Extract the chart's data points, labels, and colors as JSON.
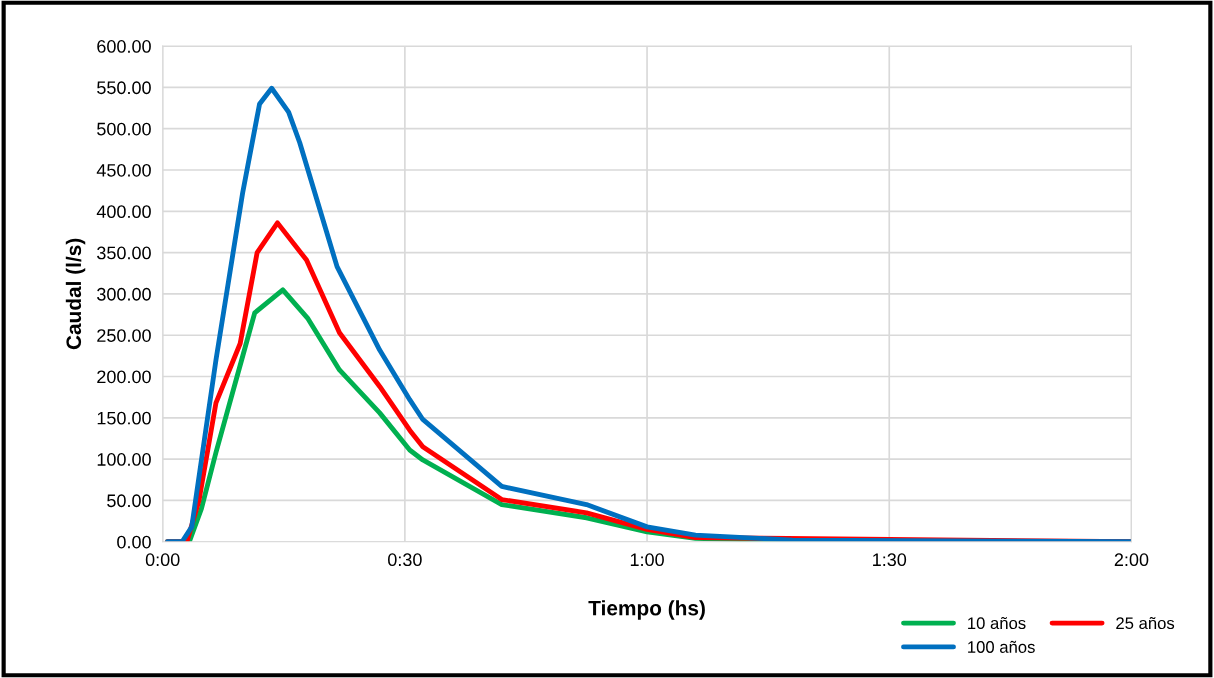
{
  "chart_data": {
    "type": "line",
    "xlabel": "Tiempo (hs)",
    "ylabel": "Caudal (l/s)",
    "xlim": [
      0,
      2
    ],
    "xticks": [
      {
        "value": 0,
        "label": "0:00"
      },
      {
        "value": 0.5,
        "label": "0:30"
      },
      {
        "value": 1,
        "label": "1:00"
      },
      {
        "value": 1.5,
        "label": "1:30"
      },
      {
        "value": 2,
        "label": "2:00"
      }
    ],
    "ylim": [
      0,
      600
    ],
    "yticks": [
      {
        "value": 0,
        "label": "0.00"
      },
      {
        "value": 50,
        "label": "50.00"
      },
      {
        "value": 100,
        "label": "100.00"
      },
      {
        "value": 150,
        "label": "150.00"
      },
      {
        "value": 200,
        "label": "200.00"
      },
      {
        "value": 250,
        "label": "250.00"
      },
      {
        "value": 300,
        "label": "300.00"
      },
      {
        "value": 350,
        "label": "350.00"
      },
      {
        "value": 400,
        "label": "400.00"
      },
      {
        "value": 450,
        "label": "450.00"
      },
      {
        "value": 500,
        "label": "500.00"
      },
      {
        "value": 550,
        "label": "550.00"
      },
      {
        "value": 600,
        "label": "600.00"
      }
    ],
    "grid": true,
    "legend": "bottom right",
    "marker": "none",
    "line_style": "solid",
    "series": [
      {
        "name": "10 años",
        "color": "#00b050",
        "x": [
          0.01,
          0.055,
          0.08,
          0.11,
          0.163,
          0.19,
          0.248,
          0.3,
          0.365,
          0.448,
          0.51,
          0.537,
          0.7,
          0.875,
          1.0,
          1.1,
          1.3,
          2.0
        ],
        "values": [
          0,
          0,
          40,
          108,
          220,
          277,
          305,
          270,
          208,
          156,
          111,
          99,
          45,
          29,
          12,
          4,
          1,
          0
        ]
      },
      {
        "name": "25 años",
        "color": "#ff0000",
        "x": [
          0.01,
          0.05,
          0.075,
          0.11,
          0.16,
          0.195,
          0.237,
          0.297,
          0.365,
          0.448,
          0.51,
          0.537,
          0.7,
          0.875,
          1.0,
          1.1,
          2.0
        ],
        "values": [
          0,
          0,
          50,
          168,
          240,
          350,
          386,
          341,
          253,
          188,
          135,
          115,
          51,
          35,
          15,
          5,
          0
        ]
      },
      {
        "name": "100 años",
        "color": "#0070c0",
        "x": [
          0.01,
          0.04,
          0.06,
          0.11,
          0.165,
          0.2,
          0.225,
          0.26,
          0.283,
          0.36,
          0.448,
          0.51,
          0.537,
          0.7,
          0.875,
          1.0,
          1.1,
          1.3,
          2.0
        ],
        "values": [
          0,
          0,
          18,
          220,
          422,
          530,
          549,
          520,
          483,
          333,
          232,
          172,
          148,
          67,
          45,
          18,
          8,
          2,
          0
        ]
      }
    ]
  }
}
